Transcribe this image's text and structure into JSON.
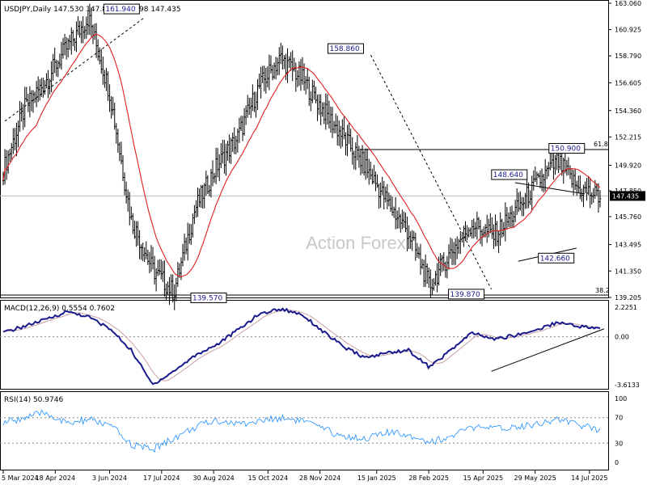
{
  "main_panel": {
    "header": "USDJPY,Daily  147.530 147.876 147.298 147.435",
    "watermark": "Action Forex",
    "price_axis_labels": [
      "163.060",
      "160.925",
      "158.790",
      "156.605",
      "154.360",
      "152.215",
      "149.920",
      "147.850",
      "145.760",
      "143.495",
      "141.350",
      "139.205"
    ],
    "current_price_label": "147.435",
    "fib_labels": [
      "61.8",
      "38.2"
    ],
    "annotations": [
      "161.940",
      "158.860",
      "139.570",
      "139.870",
      "148.640",
      "150.900",
      "142.660"
    ]
  },
  "macd_panel": {
    "header": "MACD(12,26,9) 0.5554 0.7602",
    "axis_labels": [
      "2.2251",
      "0.00",
      "-3.6133"
    ]
  },
  "rsi_panel": {
    "header": "RSI(14) 50.9746",
    "axis_labels": [
      "100",
      "70",
      "30",
      "0"
    ]
  },
  "x_axis_labels": [
    "5 Mar 2024",
    "18 Apr 2024",
    "3 Jun 2024",
    "17 Jul 2024",
    "30 Aug 2024",
    "15 Oct 2024",
    "28 Nov 2024",
    "15 Jan 2025",
    "28 Feb 2025",
    "15 Apr 2025",
    "29 May 2025",
    "14 Jul 2025"
  ],
  "colors": {
    "bars": "#000000",
    "moving_average": "#e02020",
    "macd_line": "#1a1a8c",
    "signal_line": "#c8a0a0",
    "rsi_line": "#1e90ff",
    "current_price_bg": "#000000"
  },
  "chart_data": [
    {
      "type": "ohlc",
      "symbol": "USDJPY",
      "timeframe": "Daily",
      "last": {
        "open": 147.53,
        "high": 147.876,
        "low": 147.298,
        "close": 147.435
      },
      "ylim": [
        139.205,
        163.06
      ],
      "x": [
        "2024-03-05",
        "2024-04-18",
        "2024-06-03",
        "2024-07-17",
        "2024-08-30",
        "2024-10-15",
        "2024-11-28",
        "2025-01-15",
        "2025-02-28",
        "2025-04-15",
        "2025-05-29",
        "2025-07-14",
        "2025-07-23"
      ],
      "close_path": [
        149.5,
        154.5,
        156.8,
        159.5,
        161.9,
        155.8,
        145.5,
        141.5,
        139.6,
        146.4,
        149.8,
        152.2,
        156.3,
        158.6,
        157.0,
        154.4,
        152.1,
        149.8,
        147.0,
        144.5,
        140.1,
        142.9,
        145.2,
        144.2,
        146.1,
        148.4,
        150.2,
        148.0,
        147.4
      ],
      "pivots": [
        {
          "label": "161.940",
          "date": "2024-07-03",
          "price": 161.94
        },
        {
          "label": "139.570",
          "date": "2024-09-16",
          "price": 139.57
        },
        {
          "label": "158.860",
          "date": "2025-01-10",
          "price": 158.86
        },
        {
          "label": "139.870",
          "date": "2025-04-22",
          "price": 139.87
        },
        {
          "label": "148.640",
          "date": "2025-05-12",
          "price": 148.64
        },
        {
          "label": "142.660",
          "date": "2025-05-27",
          "price": 142.66
        },
        {
          "label": "150.900",
          "date": "2025-07-16",
          "price": 150.9
        }
      ],
      "levels": {
        "61.8": 151.2,
        "38.2": 139.205
      }
    },
    {
      "type": "line",
      "name": "MACD(12,26,9)",
      "last_macd": 0.5554,
      "last_signal": 0.7602,
      "ylim": [
        -3.6133,
        2.2251
      ],
      "macd_path": [
        0.3,
        0.8,
        1.3,
        1.9,
        1.5,
        0.6,
        -1.0,
        -3.6,
        -2.6,
        -1.4,
        -0.6,
        0.5,
        1.7,
        2.1,
        1.7,
        0.4,
        -0.8,
        -1.6,
        -1.2,
        -1.0,
        -2.3,
        -1.0,
        0.3,
        -0.2,
        0.1,
        0.5,
        1.1,
        0.8,
        0.6
      ]
    },
    {
      "type": "line",
      "name": "RSI(14)",
      "last": 50.9746,
      "ylim": [
        0,
        100
      ],
      "levels": [
        70,
        30
      ],
      "rsi_path": [
        62,
        70,
        78,
        60,
        67,
        58,
        28,
        20,
        38,
        55,
        66,
        60,
        64,
        70,
        66,
        52,
        40,
        38,
        46,
        44,
        32,
        40,
        55,
        52,
        56,
        60,
        68,
        58,
        51
      ]
    }
  ]
}
